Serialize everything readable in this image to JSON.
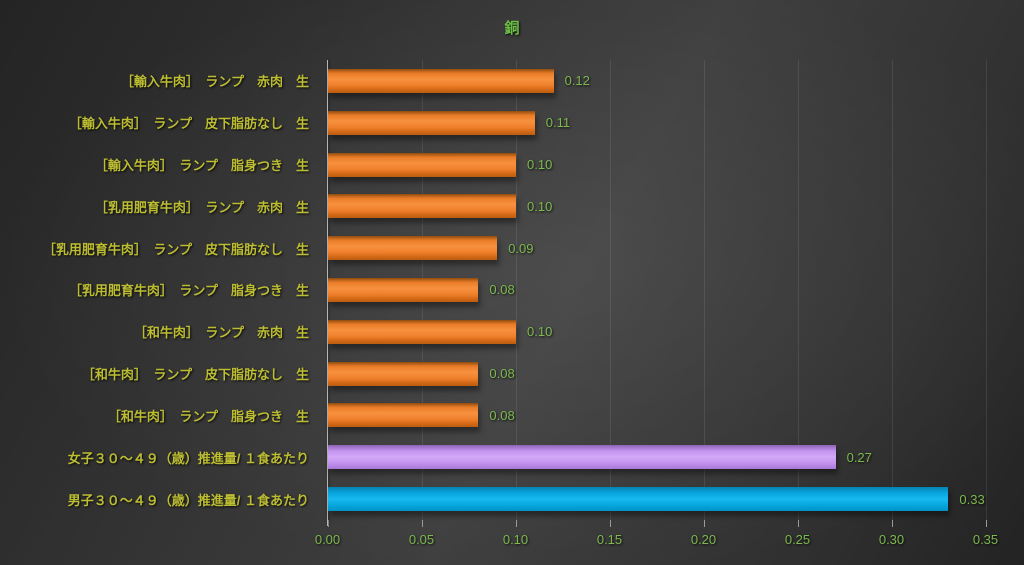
{
  "chart_data": {
    "type": "bar",
    "orientation": "horizontal",
    "title": "銅",
    "categories": [
      "［輸入牛肉］　ランプ　赤肉　生",
      "［輸入牛肉］　ランプ　皮下脂肪なし　生",
      "［輸入牛肉］　ランプ　脂身つき　生",
      "［乳用肥育牛肉］　ランプ　赤肉　生",
      "［乳用肥育牛肉］　ランプ　皮下脂肪なし　生",
      "［乳用肥育牛肉］　ランプ　脂身つき　生",
      "［和牛肉］　ランプ　赤肉　生",
      "［和牛肉］　ランプ　皮下脂肪なし　生",
      "［和牛肉］　ランプ　脂身つき　生",
      "女子３０～４９（歳）推進量/ １食あたり",
      "男子３０～４９（歳）推進量/ １食あたり"
    ],
    "values": [
      0.12,
      0.11,
      0.1,
      0.1,
      0.09,
      0.08,
      0.1,
      0.08,
      0.08,
      0.27,
      0.33
    ],
    "value_labels": [
      "0.12",
      "0.11",
      "0.10",
      "0.10",
      "0.09",
      "0.08",
      "0.10",
      "0.08",
      "0.08",
      "0.27",
      "0.33"
    ],
    "bar_color_names": [
      "orange",
      "orange",
      "orange",
      "orange",
      "orange",
      "orange",
      "orange",
      "orange",
      "orange",
      "purple",
      "blue"
    ],
    "palette": {
      "orange": "#ED7D31",
      "purple": "#C89AF1",
      "blue": "#00AEEF"
    },
    "text_colors": {
      "title": "#6CBE45",
      "category_labels": "#BCBD32",
      "values_and_ticks": "#7CB94E"
    },
    "x_ticks": [
      "0.00",
      "0.05",
      "0.10",
      "0.15",
      "0.20",
      "0.25",
      "0.30",
      "0.35"
    ],
    "x_tick_values": [
      0,
      0.05,
      0.1,
      0.15,
      0.2,
      0.25,
      0.3,
      0.35
    ],
    "xlim": [
      0,
      0.365
    ],
    "grid": true,
    "legend": false
  }
}
